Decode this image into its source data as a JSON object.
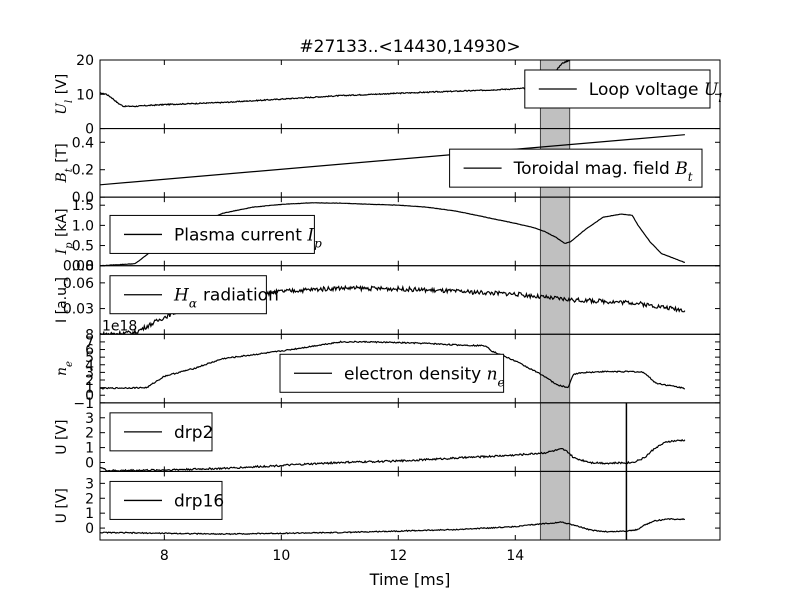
{
  "chart_data": {
    "type": "line",
    "title": "#27133..<14430,14930>",
    "xlabel": "Time [ms]",
    "xlim": [
      6.9,
      17.5
    ],
    "xticks": [
      8,
      10,
      12,
      14
    ],
    "grid": false,
    "highlight_band": {
      "x0": 14.43,
      "x1": 14.93,
      "color": "#c0c0c0"
    },
    "vertical_marker": {
      "x": 15.9
    },
    "panels": [
      {
        "ylabel": "U_l [V]",
        "ylim": [
          0,
          20
        ],
        "yticks": [
          {
            "v": 0,
            "t": "0"
          },
          {
            "v": 10,
            "t": "10"
          },
          {
            "v": 20,
            "t": "20"
          }
        ],
        "legend": {
          "label": "Loop voltage",
          "math": "U_l",
          "position": "top-right"
        },
        "series": [
          {
            "name": "Loop voltage U_l",
            "noise": 0.15,
            "x": [
              6.9,
              7.0,
              7.1,
              7.2,
              7.3,
              7.5,
              8.0,
              9.0,
              10.0,
              11.0,
              12.0,
              13.0,
              13.5,
              14.0,
              14.4,
              14.45,
              14.5,
              14.6,
              14.7,
              14.8,
              14.93
            ],
            "y": [
              10.3,
              10.1,
              9.0,
              7.5,
              6.5,
              6.5,
              7.0,
              7.6,
              8.6,
              9.6,
              10.3,
              10.9,
              11.2,
              11.6,
              12.0,
              12.5,
              13.5,
              15.0,
              17.0,
              19.0,
              20.0
            ]
          }
        ]
      },
      {
        "ylabel": "B_t [T]",
        "ylim": [
          0,
          0.5
        ],
        "yticks": [
          {
            "v": 0,
            "t": "0.0"
          },
          {
            "v": 0.2,
            "t": "0.2"
          },
          {
            "v": 0.4,
            "t": "0.4"
          }
        ],
        "legend": {
          "label": "Toroidal mag. field",
          "math": "B_t",
          "position": "lower-right"
        },
        "series": [
          {
            "name": "Toroidal mag. field B_t",
            "noise": 0,
            "x": [
              6.9,
              16.9
            ],
            "y": [
              0.09,
              0.455
            ]
          }
        ]
      },
      {
        "ylabel": "I_p [kA]",
        "ylim": [
          0,
          1.7
        ],
        "yticks": [
          {
            "v": 0,
            "t": "0.0"
          },
          {
            "v": 0.5,
            "t": "0.5"
          },
          {
            "v": 1.0,
            "t": "1.0"
          },
          {
            "v": 1.5,
            "t": "1.5"
          }
        ],
        "legend": {
          "label": "Plasma current",
          "math": "I_p",
          "position": "left"
        },
        "series": [
          {
            "name": "Plasma current I_p",
            "noise": 0.004,
            "x": [
              6.9,
              7.5,
              8.0,
              8.5,
              9.0,
              9.5,
              10.0,
              10.5,
              11.0,
              12.0,
              12.5,
              13.0,
              13.5,
              14.0,
              14.3,
              14.5,
              14.7,
              14.85,
              14.95,
              15.2,
              15.5,
              15.8,
              16.0,
              16.1,
              16.3,
              16.5,
              16.9
            ],
            "y": [
              0.0,
              0.05,
              0.6,
              1.0,
              1.3,
              1.45,
              1.52,
              1.56,
              1.55,
              1.5,
              1.45,
              1.35,
              1.2,
              1.05,
              0.95,
              0.85,
              0.7,
              0.55,
              0.6,
              0.9,
              1.2,
              1.28,
              1.25,
              1.0,
              0.6,
              0.3,
              0.08
            ]
          }
        ]
      },
      {
        "ylabel": "I [a.u.]",
        "ylim": [
          0,
          0.08
        ],
        "yticks": [
          {
            "v": 0.03,
            "t": "0.03"
          },
          {
            "v": 0.06,
            "t": "0.06"
          },
          {
            "v": 0.08,
            "t": "0.08"
          }
        ],
        "legend": {
          "label": "radiation",
          "math": "H_α",
          "position": "top-left"
        },
        "series": [
          {
            "name": "H_α radiation",
            "noise": 0.0025,
            "x": [
              6.9,
              7.5,
              8.0,
              8.5,
              9.0,
              9.5,
              10.0,
              11.0,
              12.0,
              13.0,
              14.0,
              14.5,
              15.0,
              16.0,
              16.9
            ],
            "y": [
              0.0,
              0.002,
              0.02,
              0.035,
              0.042,
              0.046,
              0.05,
              0.054,
              0.053,
              0.05,
              0.047,
              0.043,
              0.04,
              0.037,
              0.028
            ]
          }
        ]
      },
      {
        "ylabel": "n_e",
        "ylim": [
          -1,
          8
        ],
        "offset_label": "1e18",
        "yticks": [
          {
            "v": -1,
            "t": "−1"
          },
          {
            "v": 0,
            "t": "0"
          },
          {
            "v": 1,
            "t": "1"
          },
          {
            "v": 2,
            "t": "2"
          },
          {
            "v": 3,
            "t": "3"
          },
          {
            "v": 4,
            "t": "4"
          },
          {
            "v": 5,
            "t": "5"
          },
          {
            "v": 6,
            "t": "6"
          },
          {
            "v": 7,
            "t": "7"
          },
          {
            "v": 8,
            "t": "8"
          }
        ],
        "legend": {
          "label": "electron density",
          "math": "n_e",
          "position": "center"
        },
        "series": [
          {
            "name": "electron density n_e",
            "noise": 0.08,
            "x": [
              6.9,
              7.7,
              8.0,
              8.5,
              9.0,
              9.5,
              10.0,
              10.5,
              11.0,
              11.5,
              12.0,
              12.5,
              13.0,
              13.5,
              13.6,
              14.0,
              14.5,
              14.7,
              14.9,
              15.0,
              15.2,
              15.5,
              16.0,
              16.2,
              16.4,
              16.9
            ],
            "y": [
              0.9,
              1.0,
              2.5,
              3.5,
              4.8,
              5.3,
              5.8,
              6.4,
              7.0,
              7.0,
              6.9,
              6.8,
              6.6,
              6.5,
              5.8,
              4.5,
              2.5,
              1.4,
              1.0,
              2.8,
              3.0,
              3.1,
              3.1,
              3.0,
              1.6,
              0.9
            ]
          }
        ]
      },
      {
        "ylabel": "U [V]",
        "ylim": [
          -0.6,
          4
        ],
        "yticks": [
          {
            "v": 0,
            "t": "0"
          },
          {
            "v": 1,
            "t": "1"
          },
          {
            "v": 2,
            "t": "2"
          },
          {
            "v": 3,
            "t": "3"
          }
        ],
        "legend": {
          "label": "drp2",
          "math": "",
          "position": "top-left"
        },
        "series": [
          {
            "name": "drp2",
            "noise": 0.06,
            "x": [
              6.9,
              7.0,
              7.05,
              8.0,
              9.0,
              10.0,
              11.0,
              12.0,
              13.0,
              14.0,
              14.5,
              14.8,
              14.9,
              15.0,
              15.3,
              15.6,
              16.0,
              16.2,
              16.4,
              16.6,
              16.9
            ],
            "y": [
              -0.3,
              -0.5,
              -0.55,
              -0.5,
              -0.4,
              -0.2,
              0.0,
              0.1,
              0.3,
              0.5,
              0.65,
              0.9,
              0.7,
              0.3,
              0.0,
              -0.05,
              0.0,
              0.3,
              1.0,
              1.4,
              1.5
            ]
          }
        ]
      },
      {
        "ylabel": "U [V]",
        "ylim": [
          -0.8,
          3.8
        ],
        "yticks": [
          {
            "v": 0,
            "t": "0"
          },
          {
            "v": 1,
            "t": "1"
          },
          {
            "v": 2,
            "t": "2"
          },
          {
            "v": 3,
            "t": "3"
          }
        ],
        "legend": {
          "label": "drp16",
          "math": "",
          "position": "top-left"
        },
        "series": [
          {
            "name": "drp16",
            "noise": 0.035,
            "x": [
              6.9,
              8.0,
              9.0,
              10.0,
              11.0,
              12.0,
              13.0,
              14.0,
              14.5,
              14.8,
              15.0,
              15.3,
              15.6,
              15.9,
              16.1,
              16.2,
              16.4,
              16.6,
              16.9
            ],
            "y": [
              -0.3,
              -0.35,
              -0.4,
              -0.35,
              -0.3,
              -0.2,
              -0.1,
              0.1,
              0.3,
              0.4,
              0.2,
              -0.15,
              -0.25,
              -0.2,
              -0.1,
              0.2,
              0.5,
              0.6,
              0.6
            ]
          }
        ]
      }
    ]
  }
}
